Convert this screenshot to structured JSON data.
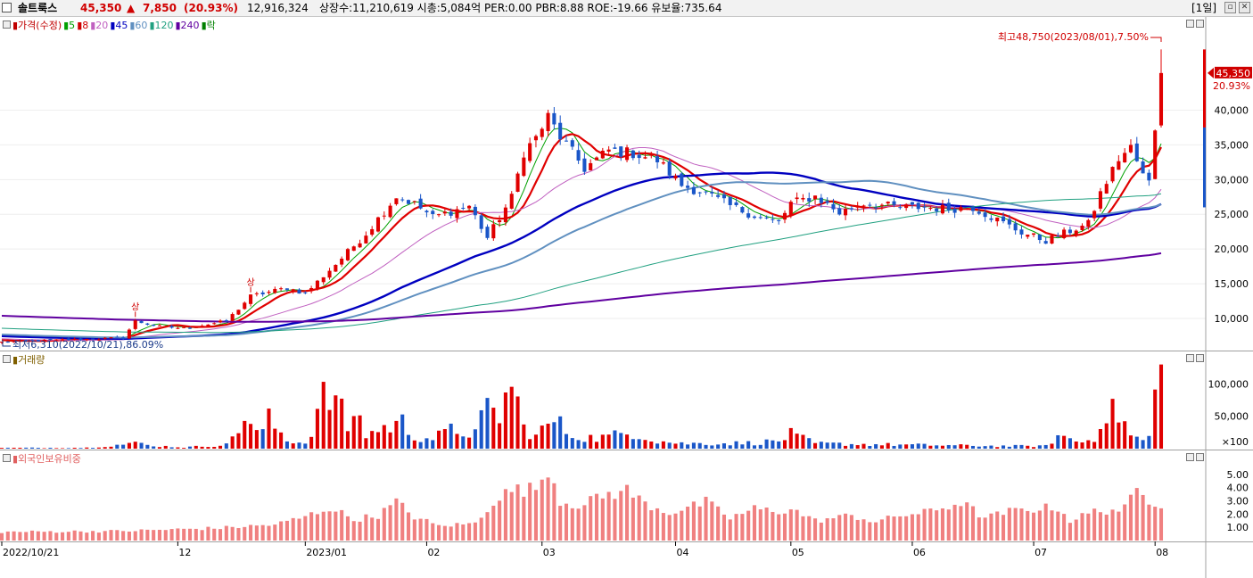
{
  "header": {
    "stock_name": "솔트룩스",
    "price": "45,350",
    "change_arrow": "▲",
    "change": "7,850",
    "change_pct": "(20.93%)",
    "volume": "12,916,324",
    "info": "상장수:11,210,619 시총:5,084억 PER:0.00 PBR:8.88 ROE:-19.66 유보율:735.64",
    "period": "[1일]"
  },
  "legends": {
    "price": [
      {
        "text": "가격(수정)",
        "color": "#c00000"
      },
      {
        "text": "5",
        "color": "#00a000"
      },
      {
        "text": "8",
        "color": "#d00000"
      },
      {
        "text": "20",
        "color": "#c060c0"
      },
      {
        "text": "45",
        "color": "#0000c0"
      },
      {
        "text": "60",
        "color": "#6090c0"
      },
      {
        "text": "120",
        "color": "#20a080"
      },
      {
        "text": "240",
        "color": "#6000a0"
      },
      {
        "text": "락",
        "color": "#008000"
      }
    ],
    "volume": "거래량",
    "foreign": "외국인보유비중"
  },
  "annotations": {
    "high": "최고48,750(2023/08/01),7.50%",
    "low": "최저6,310(2022/10/21),86.09%",
    "upper_limit_marker": "상",
    "current_price": "45,350",
    "current_pct": "20.93%",
    "volume_unit": "×100"
  },
  "colors": {
    "up": "#e00000",
    "down": "#1a56c8",
    "neutral": "#000000",
    "foreign_bar": "#f08080"
  },
  "chart_data": {
    "type": "candlestick",
    "price_axis": {
      "ylim": [
        5500,
        51500
      ],
      "ticks": [
        10000,
        15000,
        20000,
        25000,
        30000,
        35000,
        40000
      ],
      "tick_labels": [
        "10,000",
        "15,000",
        "20,000",
        "25,000",
        "30,000",
        "35,000",
        "40,000"
      ]
    },
    "volume_axis": {
      "ylim": [
        0,
        135000
      ],
      "ticks": [
        50000,
        100000
      ],
      "tick_labels": [
        "50,000",
        "100,000"
      ]
    },
    "foreign_axis": {
      "ylim": [
        0,
        6.0
      ],
      "ticks": [
        1,
        2,
        3,
        4,
        5
      ],
      "tick_labels": [
        "1.00",
        "2.00",
        "3.00",
        "4.00",
        "5.00"
      ]
    },
    "x_labels": [
      {
        "day": 0,
        "label": "2022/10/21"
      },
      {
        "day": 29,
        "label": "12"
      },
      {
        "day": 50,
        "label": "2023/01"
      },
      {
        "day": 70,
        "label": "02"
      },
      {
        "day": 89,
        "label": "03"
      },
      {
        "day": 111,
        "label": "04"
      },
      {
        "day": 130,
        "label": "05"
      },
      {
        "day": 150,
        "label": "06"
      },
      {
        "day": 170,
        "label": "07"
      },
      {
        "day": 190,
        "label": "08"
      }
    ],
    "close_anchors": [
      [
        0,
        6600
      ],
      [
        10,
        6900
      ],
      [
        20,
        7200
      ],
      [
        22,
        9600
      ],
      [
        26,
        8800
      ],
      [
        30,
        8600
      ],
      [
        37,
        9600
      ],
      [
        41,
        13200
      ],
      [
        47,
        14400
      ],
      [
        50,
        13600
      ],
      [
        55,
        17800
      ],
      [
        60,
        22200
      ],
      [
        65,
        27600
      ],
      [
        68,
        26500
      ],
      [
        71,
        24600
      ],
      [
        77,
        26200
      ],
      [
        80,
        21600
      ],
      [
        84,
        27400
      ],
      [
        86,
        34000
      ],
      [
        88,
        36000
      ],
      [
        90,
        39000
      ],
      [
        92,
        36200
      ],
      [
        96,
        31600
      ],
      [
        100,
        34200
      ],
      [
        104,
        33800
      ],
      [
        108,
        32800
      ],
      [
        112,
        29200
      ],
      [
        116,
        28000
      ],
      [
        120,
        26200
      ],
      [
        124,
        24800
      ],
      [
        128,
        23800
      ],
      [
        130,
        26600
      ],
      [
        134,
        27600
      ],
      [
        138,
        25200
      ],
      [
        142,
        26600
      ],
      [
        148,
        26000
      ],
      [
        152,
        26000
      ],
      [
        156,
        25800
      ],
      [
        160,
        26000
      ],
      [
        164,
        24200
      ],
      [
        168,
        22400
      ],
      [
        172,
        21200
      ],
      [
        176,
        22600
      ],
      [
        179,
        23600
      ],
      [
        181,
        28000
      ],
      [
        184,
        33000
      ],
      [
        186,
        34600
      ],
      [
        188,
        30600
      ],
      [
        189,
        29600
      ],
      [
        190,
        37500
      ],
      [
        191,
        45350
      ]
    ],
    "ma_series": [
      {
        "name": "5",
        "period": 5
      },
      {
        "name": "8",
        "period": 8
      },
      {
        "name": "20",
        "period": 20
      },
      {
        "name": "45",
        "period": 45
      },
      {
        "name": "60",
        "period": 60
      },
      {
        "name": "120",
        "period": 120
      },
      {
        "name": "240",
        "period": 240
      }
    ],
    "volume_anchors": [
      [
        0,
        1200
      ],
      [
        14,
        1500
      ],
      [
        23,
        9000
      ],
      [
        24,
        5000
      ],
      [
        30,
        2000
      ],
      [
        37,
        6000
      ],
      [
        40,
        46000
      ],
      [
        42,
        22000
      ],
      [
        44,
        44000
      ],
      [
        47,
        14000
      ],
      [
        50,
        8000
      ],
      [
        53,
        76000
      ],
      [
        55,
        78000
      ],
      [
        57,
        30000
      ],
      [
        58,
        62000
      ],
      [
        60,
        22000
      ],
      [
        63,
        32000
      ],
      [
        66,
        40000
      ],
      [
        68,
        18000
      ],
      [
        71,
        16000
      ],
      [
        74,
        28000
      ],
      [
        78,
        24000
      ],
      [
        80,
        60000
      ],
      [
        82,
        52000
      ],
      [
        84,
        100000
      ],
      [
        86,
        32000
      ],
      [
        88,
        20000
      ],
      [
        91,
        44000
      ],
      [
        94,
        20000
      ],
      [
        98,
        16000
      ],
      [
        102,
        22000
      ],
      [
        104,
        26000
      ],
      [
        108,
        12000
      ],
      [
        112,
        8000
      ],
      [
        118,
        8000
      ],
      [
        124,
        9000
      ],
      [
        128,
        12000
      ],
      [
        130,
        22000
      ],
      [
        134,
        8000
      ],
      [
        140,
        7000
      ],
      [
        148,
        6000
      ],
      [
        156,
        5000
      ],
      [
        165,
        4000
      ],
      [
        172,
        4000
      ],
      [
        174,
        20000
      ],
      [
        178,
        10000
      ],
      [
        180,
        16000
      ],
      [
        181,
        52000
      ],
      [
        183,
        54000
      ],
      [
        184,
        56000
      ],
      [
        186,
        20000
      ],
      [
        188,
        12000
      ],
      [
        189,
        20000
      ],
      [
        190,
        76000
      ],
      [
        191,
        130000
      ]
    ],
    "foreign_anchors": [
      [
        0,
        0.65
      ],
      [
        20,
        0.72
      ],
      [
        36,
        0.95
      ],
      [
        45,
        1.2
      ],
      [
        50,
        1.8
      ],
      [
        54,
        2.5
      ],
      [
        58,
        1.6
      ],
      [
        62,
        1.9
      ],
      [
        65,
        2.9
      ],
      [
        68,
        1.8
      ],
      [
        72,
        1.1
      ],
      [
        78,
        1.3
      ],
      [
        81,
        3.0
      ],
      [
        84,
        3.8
      ],
      [
        88,
        3.9
      ],
      [
        90,
        5.6
      ],
      [
        92,
        3.0
      ],
      [
        96,
        2.6
      ],
      [
        98,
        3.3
      ],
      [
        103,
        3.8
      ],
      [
        106,
        2.8
      ],
      [
        110,
        2.1
      ],
      [
        114,
        2.6
      ],
      [
        116,
        2.9
      ],
      [
        120,
        1.7
      ],
      [
        124,
        2.4
      ],
      [
        128,
        2.2
      ],
      [
        130,
        2.4
      ],
      [
        134,
        1.5
      ],
      [
        140,
        1.9
      ],
      [
        144,
        1.4
      ],
      [
        148,
        1.9
      ],
      [
        152,
        2.1
      ],
      [
        156,
        2.6
      ],
      [
        158,
        2.9
      ],
      [
        162,
        1.7
      ],
      [
        166,
        2.2
      ],
      [
        170,
        2.4
      ],
      [
        174,
        2.5
      ],
      [
        176,
        1.5
      ],
      [
        180,
        2.2
      ],
      [
        185,
        2.4
      ],
      [
        187,
        3.7
      ],
      [
        189,
        3.1
      ],
      [
        191,
        2.8
      ]
    ]
  }
}
